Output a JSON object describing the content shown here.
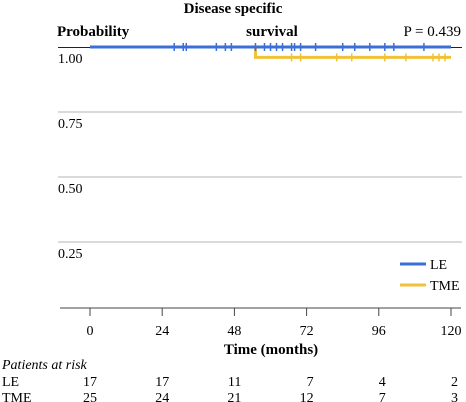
{
  "chart_data": {
    "type": "line",
    "title": "Disease specific survival",
    "title_lines": [
      "Disease specific",
      "survival"
    ],
    "ylabel": "Probability",
    "xlabel": "Time (months)",
    "p_value": "P = 0.439",
    "xlim": [
      0,
      120
    ],
    "ylim": [
      0.0,
      1.0
    ],
    "x_ticks": [
      0,
      24,
      48,
      72,
      96,
      120
    ],
    "y_ticks": [
      0.25,
      0.5,
      0.75,
      1.0
    ],
    "y_tick_labels": [
      "0.25",
      "0.50",
      "0.75",
      "1.00"
    ],
    "grid": "horizontal",
    "legend_position": "bottom-right",
    "series": [
      {
        "name": "LE",
        "color": "#3a6fd8",
        "step_points": [
          [
            0,
            1.0
          ],
          [
            120,
            1.0
          ]
        ],
        "censor_times": [
          28,
          31,
          32,
          42,
          45,
          47,
          55,
          58,
          60,
          62,
          64,
          67,
          68,
          70,
          75,
          84,
          88,
          93,
          98,
          101,
          111
        ]
      },
      {
        "name": "TME",
        "color": "#f0c23a",
        "step_points": [
          [
            55,
            1.0
          ],
          [
            55,
            0.96
          ],
          [
            120,
            0.96
          ]
        ],
        "censor_times": [
          67,
          70,
          82,
          87,
          98,
          105,
          114,
          116,
          118
        ]
      }
    ],
    "risk_table": {
      "title": "Patients at risk",
      "times": [
        0,
        24,
        48,
        72,
        96,
        120
      ],
      "rows": [
        {
          "label": "LE",
          "counts": [
            17,
            17,
            11,
            7,
            4,
            2
          ]
        },
        {
          "label": "TME",
          "counts": [
            25,
            24,
            21,
            12,
            7,
            3
          ]
        }
      ]
    }
  }
}
